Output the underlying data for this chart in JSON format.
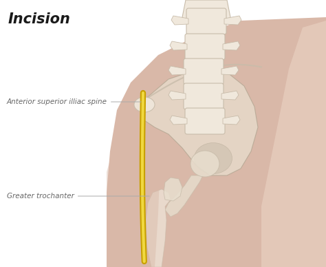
{
  "title": "Incision",
  "title_fontsize": 15,
  "title_color": "#1a1a1a",
  "bg_color": "#ffffff",
  "skin_main": "#d9b8a8",
  "skin_light": "#e8cfc0",
  "skin_dark": "#c4a090",
  "skin_shadow": "#b89080",
  "bone_main": "#e8dece",
  "bone_light": "#f0e8dc",
  "bone_dark": "#c8bcaa",
  "bone_outline": "#b0a490",
  "incision_outer": "#c8a000",
  "incision_inner": "#f0d840",
  "label1_text": "Anterior superior illiac spine",
  "label2_text": "Greater trochanter",
  "label_fontsize": 7.5,
  "label_color": "#666666",
  "arrow_color": "#aaaaaa"
}
